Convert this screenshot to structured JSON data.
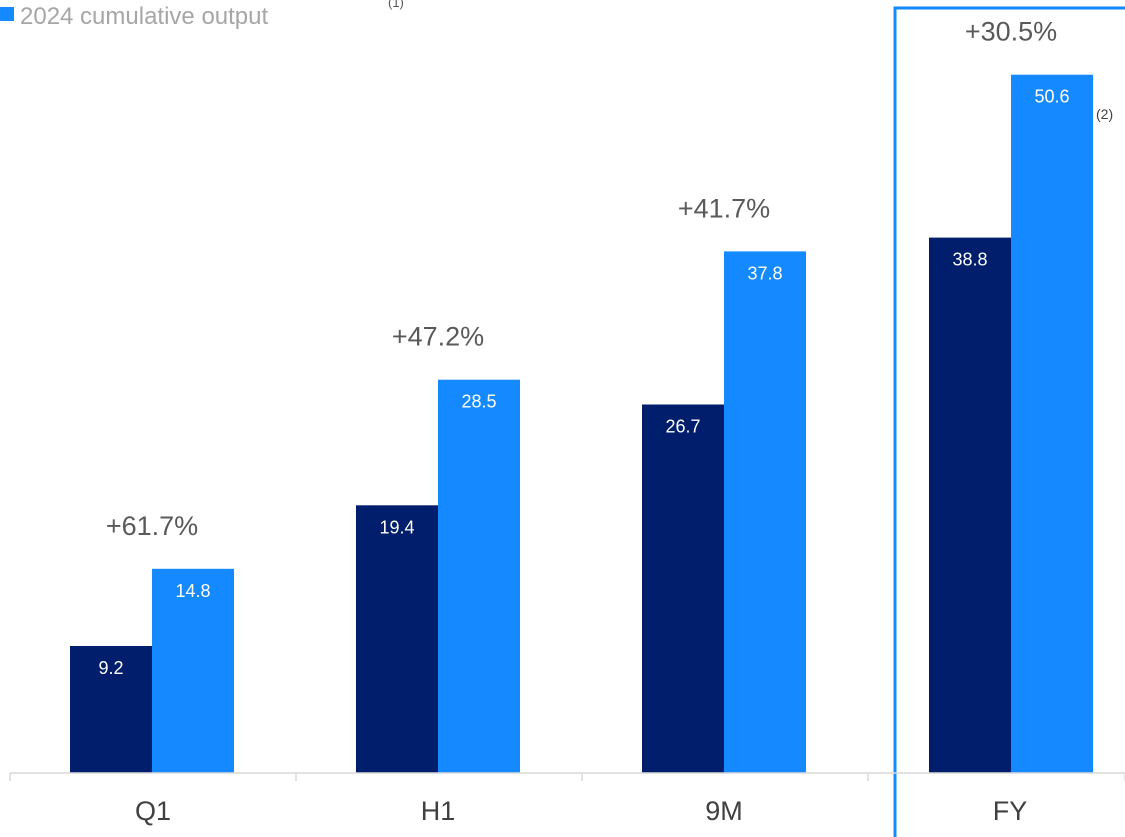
{
  "chart_data": {
    "type": "bar",
    "categories": [
      "Q1",
      "H1",
      "9M",
      "FY"
    ],
    "series": [
      {
        "values": [
          9.2,
          19.4,
          26.7,
          38.8
        ],
        "color": "#001e6c"
      },
      {
        "name": "2024 cumulative output",
        "values": [
          14.8,
          28.5,
          37.8,
          50.6
        ],
        "color": "#1589ff"
      }
    ],
    "legend": {
      "text": "2024 cumulative output",
      "footnote_ref": "(1)",
      "placement": "top-left"
    },
    "growth_labels": [
      "+61.7%",
      "+47.2%",
      "+41.7%",
      "+30.5%"
    ],
    "annotations": {
      "fy_footnote_ref": "(2)",
      "highlighted_category": "FY",
      "highlight_color": "#1589ff"
    },
    "ylim": [
      0,
      55
    ],
    "grid": false,
    "axis_color": "#d9d9d9"
  }
}
